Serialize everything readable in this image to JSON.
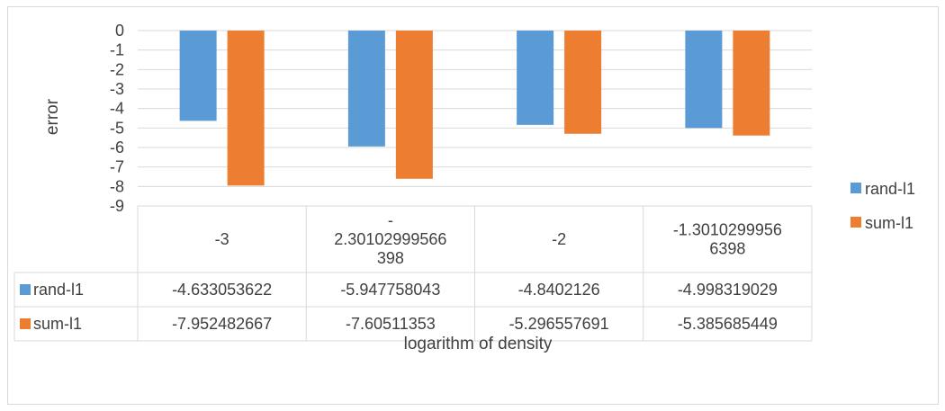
{
  "chart_data": {
    "type": "bar",
    "categories": [
      "-3",
      "-2.30102999566398",
      "-2",
      "-1.30102999566398"
    ],
    "category_labels": [
      [
        "-3"
      ],
      [
        "-",
        "2.30102999566",
        "398"
      ],
      [
        "-2"
      ],
      [
        "-1.3010299956",
        "6398"
      ]
    ],
    "series": [
      {
        "name": "rand-l1",
        "color": "#5b9bd5",
        "values": [
          -4.633053622,
          -5.947758043,
          -4.8402126,
          -4.998319029
        ],
        "labels": [
          "-4.633053622",
          "-5.947758043",
          "-4.8402126",
          "-4.998319029"
        ]
      },
      {
        "name": "sum-l1",
        "color": "#ed7d31",
        "values": [
          -7.952482667,
          -7.60511353,
          -5.296557691,
          -5.385685449
        ],
        "labels": [
          "-7.952482667",
          "-7.60511353",
          "-5.296557691",
          "-5.385685449"
        ]
      }
    ],
    "xlabel": "logarithm of density",
    "ylabel": "error",
    "ylim": [
      -9,
      0
    ],
    "yticks": [
      "0",
      "-1",
      "-2",
      "-3",
      "-4",
      "-5",
      "-6",
      "-7",
      "-8",
      "-9"
    ],
    "grid": true,
    "legend_position": "right",
    "data_table": true
  }
}
